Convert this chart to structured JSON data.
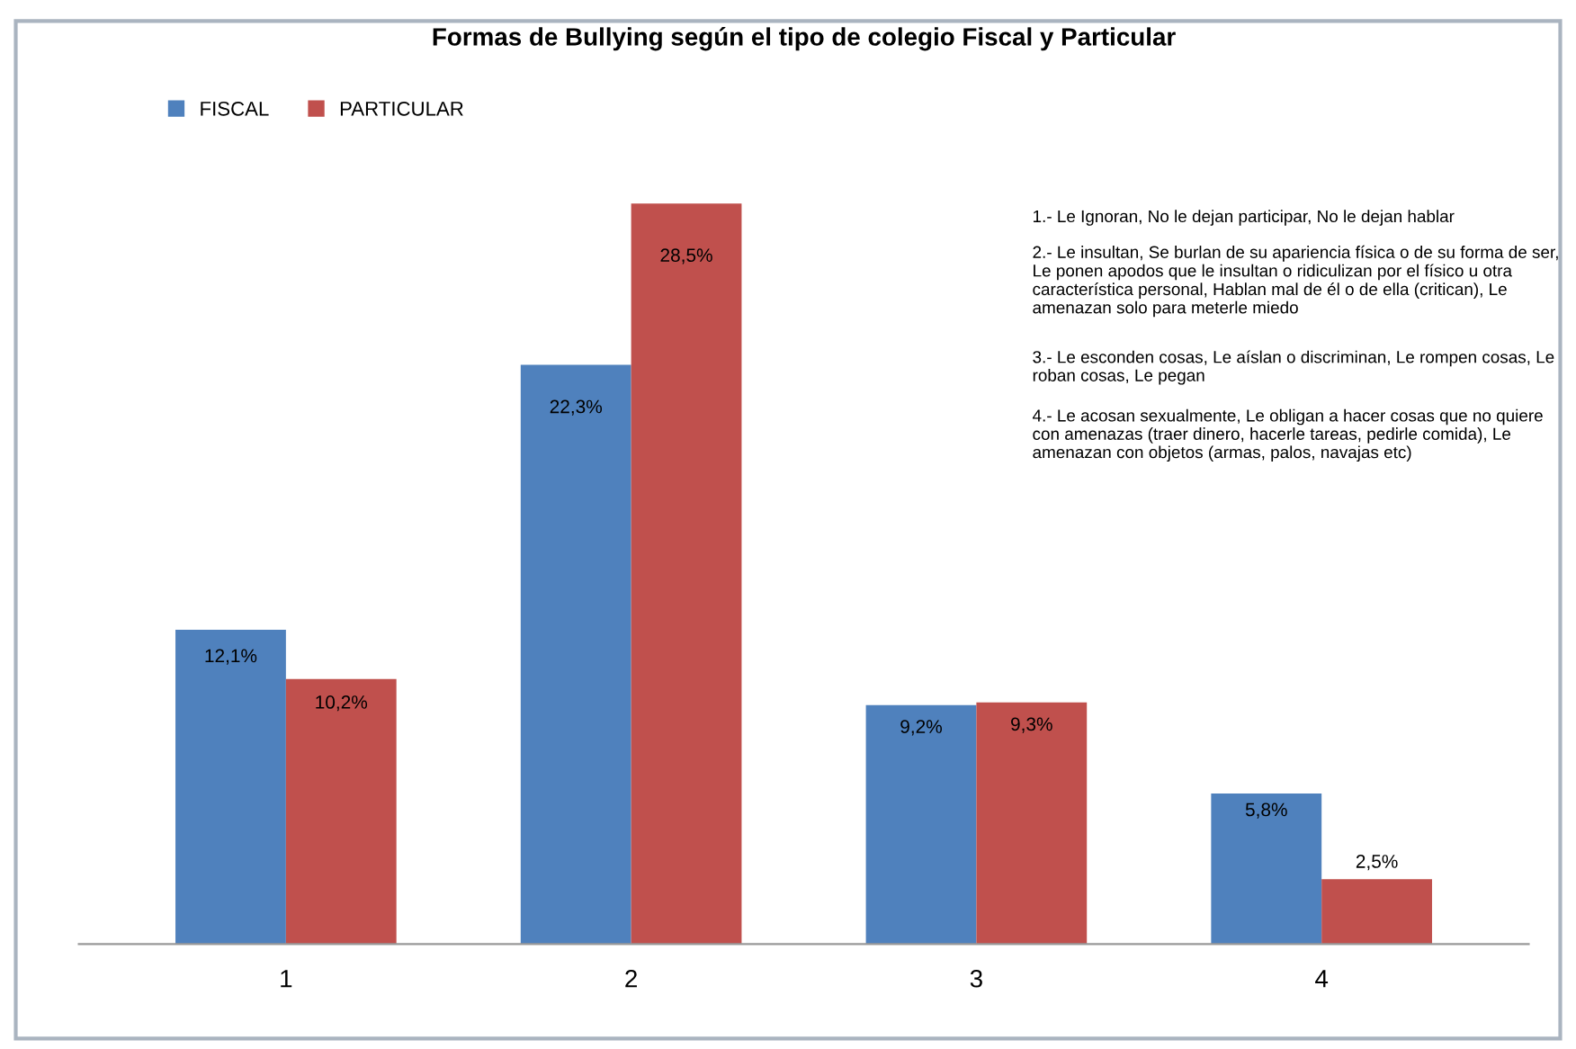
{
  "chart_data": {
    "type": "bar",
    "title": "Formas de Bullying según el tipo de colegio Fiscal y Particular",
    "categories": [
      "1",
      "2",
      "3",
      "4"
    ],
    "series": [
      {
        "name": "FISCAL",
        "color": "#4f81bd",
        "values": [
          12.1,
          22.3,
          9.2,
          5.8
        ],
        "value_labels": [
          "12,1%",
          "22,3%",
          "9,2%",
          "5,8%"
        ]
      },
      {
        "name": "PARTICULAR",
        "color": "#c0504d",
        "values": [
          10.2,
          28.5,
          9.3,
          2.5
        ],
        "value_labels": [
          "10,2%",
          "28,5%",
          "9,3%",
          "2,5%"
        ]
      }
    ],
    "legend": "top left",
    "grid": false,
    "annotations": [
      "1.- Le Ignoran, No le dejan participar, No le dejan hablar",
      "2.- Le insultan, Se burlan de su apariencia física o de su forma de ser, Le ponen apodos que le insultan o ridiculizan por el físico u otra característica personal, Hablan mal de él o de ella (critican), Le amenazan solo para meterle miedo",
      "3.- Le esconden cosas, Le aíslan o discriminan, Le rompen cosas, Le roban cosas, Le pegan",
      "4.- Le acosan sexualmente, Le obligan a hacer cosas que no quiere con amenazas (traer dinero, hacerle tareas, pedirle comida), Le amenazan con objetos (armas, palos, navajas etc)"
    ]
  }
}
